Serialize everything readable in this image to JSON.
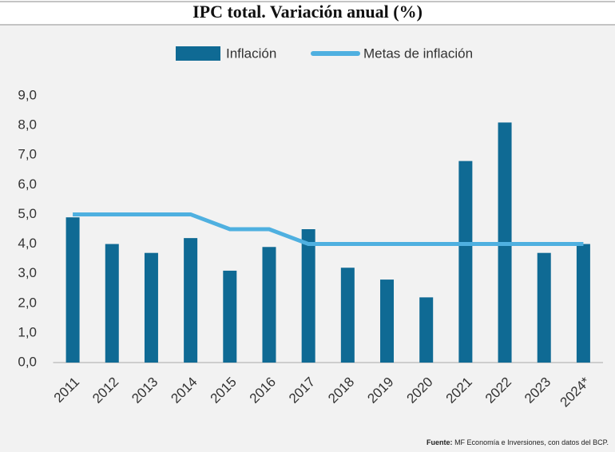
{
  "chart_data": {
    "type": "bar",
    "title": "IPC total. Variación anual (%)",
    "categories": [
      "2011",
      "2012",
      "2013",
      "2014",
      "2015",
      "2016",
      "2017",
      "2018",
      "2019",
      "2020",
      "2021",
      "2022",
      "2023",
      "2024*"
    ],
    "series": [
      {
        "name": "Inflación",
        "type": "bar",
        "color": "#0f6a94",
        "values": [
          4.9,
          4.0,
          3.7,
          4.2,
          3.1,
          3.9,
          4.5,
          3.2,
          2.8,
          2.2,
          6.8,
          8.1,
          3.7,
          4.0
        ]
      },
      {
        "name": "Metas de inflación",
        "type": "line",
        "color": "#4fb0e0",
        "values": [
          5.0,
          5.0,
          5.0,
          5.0,
          4.5,
          4.5,
          4.0,
          4.0,
          4.0,
          4.0,
          4.0,
          4.0,
          4.0,
          4.0
        ]
      }
    ],
    "ylim": [
      0,
      9
    ],
    "yticks": [
      {
        "value": 0,
        "label": "0,0"
      },
      {
        "value": 1,
        "label": "1,0"
      },
      {
        "value": 2,
        "label": "2,0"
      },
      {
        "value": 3,
        "label": "3,0"
      },
      {
        "value": 4,
        "label": "4,0"
      },
      {
        "value": 5,
        "label": "5,0"
      },
      {
        "value": 6,
        "label": "6,0"
      },
      {
        "value": 7,
        "label": "7,0"
      },
      {
        "value": 8,
        "label": "8,0"
      },
      {
        "value": 9,
        "label": "9,0"
      }
    ],
    "grid": false,
    "legend": "top",
    "source_label": "Fuente:",
    "source": "MF Economía e Inversiones, con datos del BCP."
  }
}
